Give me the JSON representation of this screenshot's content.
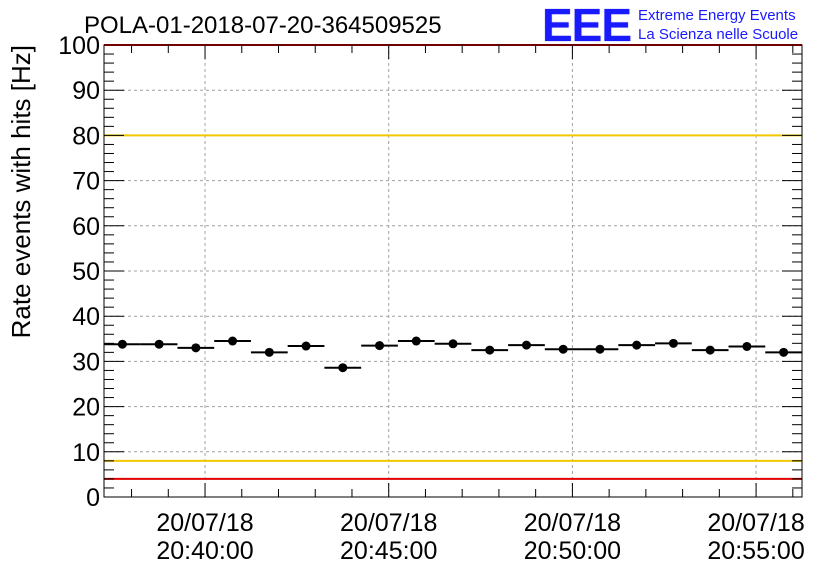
{
  "logo": {
    "letters": "EEE",
    "line1": "Extreme Energy Events",
    "line2": "La Scienza nelle Scuole",
    "color": "#1a1aff"
  },
  "colors": {
    "warning_line": "#f0c800",
    "limit_line": "#e00000",
    "grid": "#a0a0a0",
    "marker": "#000000"
  },
  "chart_data": {
    "type": "scatter",
    "title": "POLA-01-2018-07-20-364509525",
    "xlabel": "",
    "ylabel": "Rate events with hits [Hz]",
    "ylim": [
      0,
      100
    ],
    "yticks": [
      0,
      10,
      20,
      30,
      40,
      50,
      60,
      70,
      80,
      90,
      100
    ],
    "xlim": [
      "20/07/18 20:37:15",
      "20/07/18 20:56:15"
    ],
    "xticks": [
      {
        "value": "20/07/18 20:40:00",
        "date": "20/07/18",
        "time": "20:40:00"
      },
      {
        "value": "20/07/18 20:45:00",
        "date": "20/07/18",
        "time": "20:45:00"
      },
      {
        "value": "20/07/18 20:50:00",
        "date": "20/07/18",
        "time": "20:50:00"
      },
      {
        "value": "20/07/18 20:55:00",
        "date": "20/07/18",
        "time": "20:55:00"
      }
    ],
    "grid": true,
    "bin_width_s": 60,
    "x": [
      "20:37:45",
      "20:38:45",
      "20:39:45",
      "20:40:45",
      "20:41:45",
      "20:42:45",
      "20:43:45",
      "20:44:45",
      "20:45:45",
      "20:46:45",
      "20:47:45",
      "20:48:45",
      "20:49:45",
      "20:50:45",
      "20:51:45",
      "20:52:45",
      "20:53:45",
      "20:54:45",
      "20:55:45"
    ],
    "values": [
      33.8,
      33.8,
      33.0,
      34.5,
      32.0,
      33.4,
      28.6,
      33.5,
      34.5,
      33.9,
      32.5,
      33.6,
      32.7,
      32.7,
      33.6,
      34.0,
      32.5,
      33.3,
      32.0
    ],
    "reference_lines": [
      {
        "y": 80,
        "color": "#f0c800"
      },
      {
        "y": 8,
        "color": "#f0c800"
      },
      {
        "y": 4,
        "color": "#e00000"
      },
      {
        "y": 100,
        "color": "#e00000"
      }
    ]
  }
}
